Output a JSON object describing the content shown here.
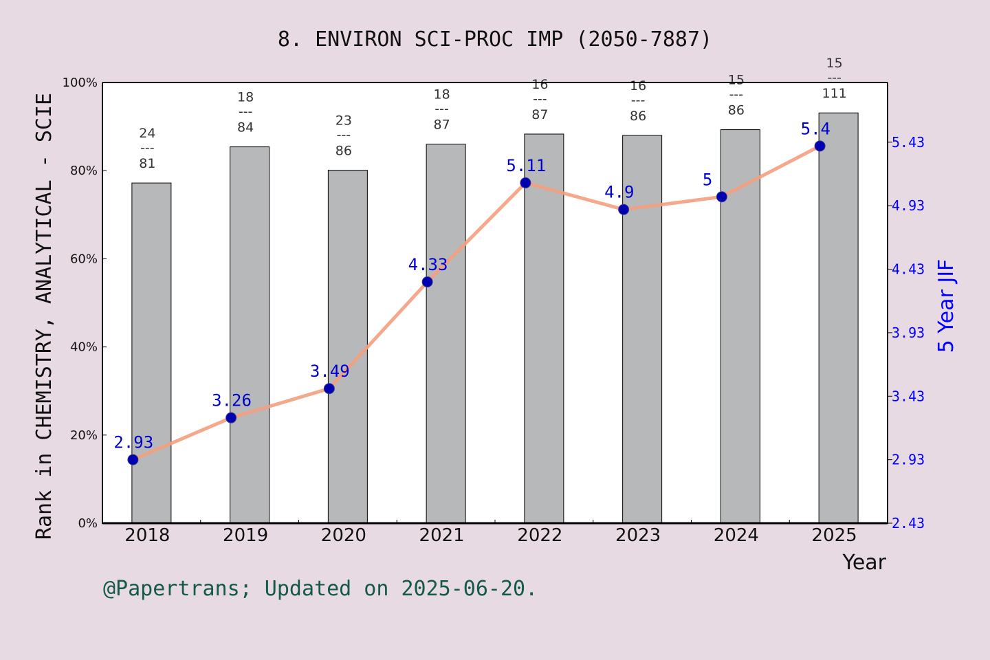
{
  "chart_data": {
    "type": "bar",
    "title": "8. ENVIRON SCI-PROC IMP (2050-7887)",
    "xlabel": "Year",
    "ylabel": "Rank in CHEMISTRY, ANALYTICAL - SCIE",
    "y2label": "5 Year JIF",
    "footer": "@Papertrans; Updated on 2025-06-20.",
    "categories": [
      "2018",
      "2019",
      "2020",
      "2021",
      "2022",
      "2023",
      "2024",
      "2025"
    ],
    "ylim": [
      0,
      100
    ],
    "y_ticks": [
      "0%",
      "20%",
      "40%",
      "60%",
      "80%",
      "100%"
    ],
    "y2lim": [
      2.43,
      5.9
    ],
    "y2_ticks": [
      "2.43",
      "2.93",
      "3.43",
      "3.93",
      "4.43",
      "4.93",
      "5.43"
    ],
    "series": [
      {
        "name": "Rank percentile",
        "type": "bar",
        "values": [
          77.2,
          85.4,
          80.1,
          86.0,
          88.3,
          88.0,
          89.3,
          93.1
        ],
        "labels": [
          {
            "rank": "24",
            "sep": "---",
            "total": "81"
          },
          {
            "rank": "18",
            "sep": "---",
            "total": "84"
          },
          {
            "rank": "23",
            "sep": "---",
            "total": "86"
          },
          {
            "rank": "18",
            "sep": "---",
            "total": "87"
          },
          {
            "rank": "16",
            "sep": "---",
            "total": "87"
          },
          {
            "rank": "16",
            "sep": "---",
            "total": "86"
          },
          {
            "rank": "15",
            "sep": "---",
            "total": "86"
          },
          {
            "rank": "15",
            "sep": "---",
            "total": "111"
          }
        ]
      },
      {
        "name": "5 Year JIF",
        "type": "line",
        "values": [
          2.93,
          3.26,
          3.49,
          4.33,
          5.11,
          4.9,
          5.0,
          5.4
        ],
        "labels": [
          "2.93",
          "3.26",
          "3.49",
          "4.33",
          "5.11",
          "4.9",
          "5",
          "5.4"
        ]
      }
    ],
    "colors": {
      "bar": "#b7b8ba",
      "line": "#f4a080",
      "marker": "#0000b0",
      "right_axis": "#0000ff",
      "background": "#e8dae2",
      "plot_background": "#ffffff",
      "footer": "#145a4a"
    }
  }
}
